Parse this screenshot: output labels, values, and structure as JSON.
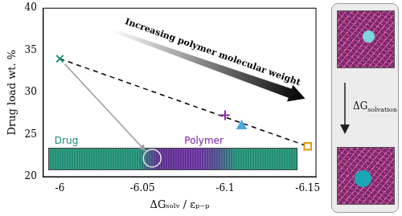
{
  "chart_data": {
    "type": "scatter",
    "x_label": "ΔGₛₒₗᵥ / εₚ₋ₚ",
    "y_label": "Drug load wt. %",
    "xlim": [
      -5.99,
      -6.155
    ],
    "xticks": [
      -6,
      -6.05,
      -6.1,
      -6.15
    ],
    "ylim": [
      20,
      40
    ],
    "yticks": [
      20,
      25,
      30,
      35,
      40
    ],
    "grid": false,
    "series": [
      {
        "color": "#000000",
        "type": "line",
        "line_style": "dashed",
        "x": [
          -6,
          -6.15
        ],
        "values": [
          34,
          23.6
        ]
      },
      {
        "color": "#1a8a72",
        "marker": "x",
        "x": [
          -6
        ],
        "values": [
          34
        ]
      },
      {
        "color": "#8e24aa",
        "marker": "plus",
        "x": [
          -6.1
        ],
        "values": [
          27.3
        ]
      },
      {
        "color": "#4aa8e0",
        "marker": "triangle",
        "x": [
          -6.11
        ],
        "values": [
          26
        ]
      },
      {
        "color": "#e8960c",
        "marker": "open_square",
        "x": [
          -6.15
        ],
        "values": [
          23.6
        ]
      }
    ],
    "annotations": [
      "Increasing polymer molecular weight",
      "Drug",
      "Polymer"
    ]
  },
  "side_panel": {
    "label": "ΔG",
    "label_sub": "solvation"
  }
}
